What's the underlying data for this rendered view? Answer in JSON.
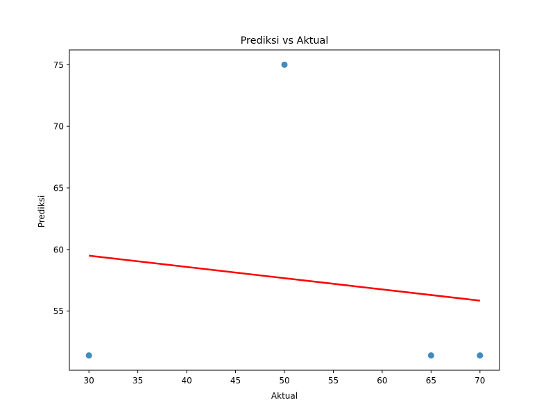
{
  "chart_data": {
    "type": "scatter",
    "title": "Prediksi vs Aktual",
    "xlabel": "Aktual",
    "ylabel": "Prediksi",
    "xlim": [
      28.0,
      72.0
    ],
    "ylim": [
      50.2,
      76.2
    ],
    "xticks": [
      30,
      35,
      40,
      45,
      50,
      55,
      60,
      65,
      70
    ],
    "yticks": [
      55,
      60,
      65,
      70,
      75
    ],
    "grid": false,
    "series": [
      {
        "type": "scatter",
        "color": "#1f77b4",
        "points": [
          {
            "x": 30,
            "y": 51.4
          },
          {
            "x": 50,
            "y": 75.0
          },
          {
            "x": 65,
            "y": 51.4
          },
          {
            "x": 70,
            "y": 51.4
          }
        ]
      },
      {
        "type": "line",
        "color": "#ff0000",
        "points": [
          {
            "x": 30,
            "y": 59.5
          },
          {
            "x": 70,
            "y": 55.85
          }
        ]
      }
    ]
  }
}
